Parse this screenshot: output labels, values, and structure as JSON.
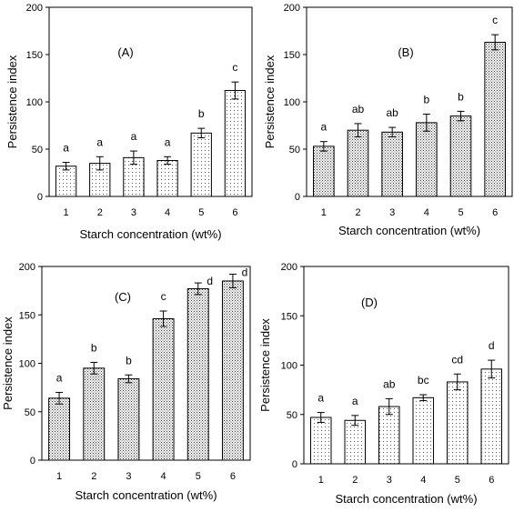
{
  "chart_data": [
    {
      "type": "bar",
      "title": "(A)",
      "xlabel": "Starch concentration (wt%)",
      "ylabel": "Persistence index",
      "categories": [
        "1",
        "2",
        "3",
        "4",
        "5",
        "6"
      ],
      "values": [
        32,
        35,
        41,
        38,
        67,
        112
      ],
      "errors": [
        4,
        7,
        7,
        4,
        5,
        9
      ],
      "significance": [
        "a",
        "a",
        "a",
        "a",
        "b",
        "c"
      ],
      "ylim": [
        0,
        200
      ],
      "yticks": [
        0,
        50,
        100,
        150,
        200
      ],
      "bar_fill": "dots-sparse",
      "bar_color": "#555555"
    },
    {
      "type": "bar",
      "title": "(B)",
      "xlabel": "Starch concentration (wt%)",
      "ylabel": "Persistence index",
      "categories": [
        "1",
        "2",
        "3",
        "4",
        "5",
        "6"
      ],
      "values": [
        53,
        70,
        68,
        78,
        85,
        163
      ],
      "errors": [
        5,
        7,
        5,
        9,
        5,
        8
      ],
      "significance": [
        "a",
        "ab",
        "ab",
        "b",
        "b",
        "c"
      ],
      "ylim": [
        0,
        200
      ],
      "yticks": [
        0,
        50,
        100,
        150,
        200
      ],
      "bar_fill": "dots-dense",
      "bar_color": "#333333"
    },
    {
      "type": "bar",
      "title": "(C)",
      "xlabel": "Starch concentration (wt%)",
      "ylabel": "Persistence index",
      "categories": [
        "1",
        "2",
        "3",
        "4",
        "5",
        "6"
      ],
      "values": [
        64,
        95,
        84,
        146,
        177,
        185
      ],
      "errors": [
        6,
        6,
        4,
        8,
        6,
        7
      ],
      "significance": [
        "a",
        "b",
        "b",
        "c",
        "d",
        "d"
      ],
      "ylim": [
        0,
        200
      ],
      "yticks": [
        0,
        50,
        100,
        150,
        200
      ],
      "bar_fill": "dots-dense",
      "bar_color": "#333333"
    },
    {
      "type": "bar",
      "title": "(D)",
      "xlabel": "Starch concentration (wt%)",
      "ylabel": "Persistence index",
      "categories": [
        "1",
        "2",
        "3",
        "4",
        "5",
        "6"
      ],
      "values": [
        47,
        44,
        58,
        67,
        83,
        96
      ],
      "errors": [
        5,
        5,
        8,
        3,
        8,
        9
      ],
      "significance": [
        "a",
        "a",
        "ab",
        "bc",
        "cd",
        "d"
      ],
      "ylim": [
        0,
        200
      ],
      "yticks": [
        0,
        50,
        100,
        150,
        200
      ],
      "bar_fill": "dots-sparse",
      "bar_color": "#555555"
    }
  ]
}
